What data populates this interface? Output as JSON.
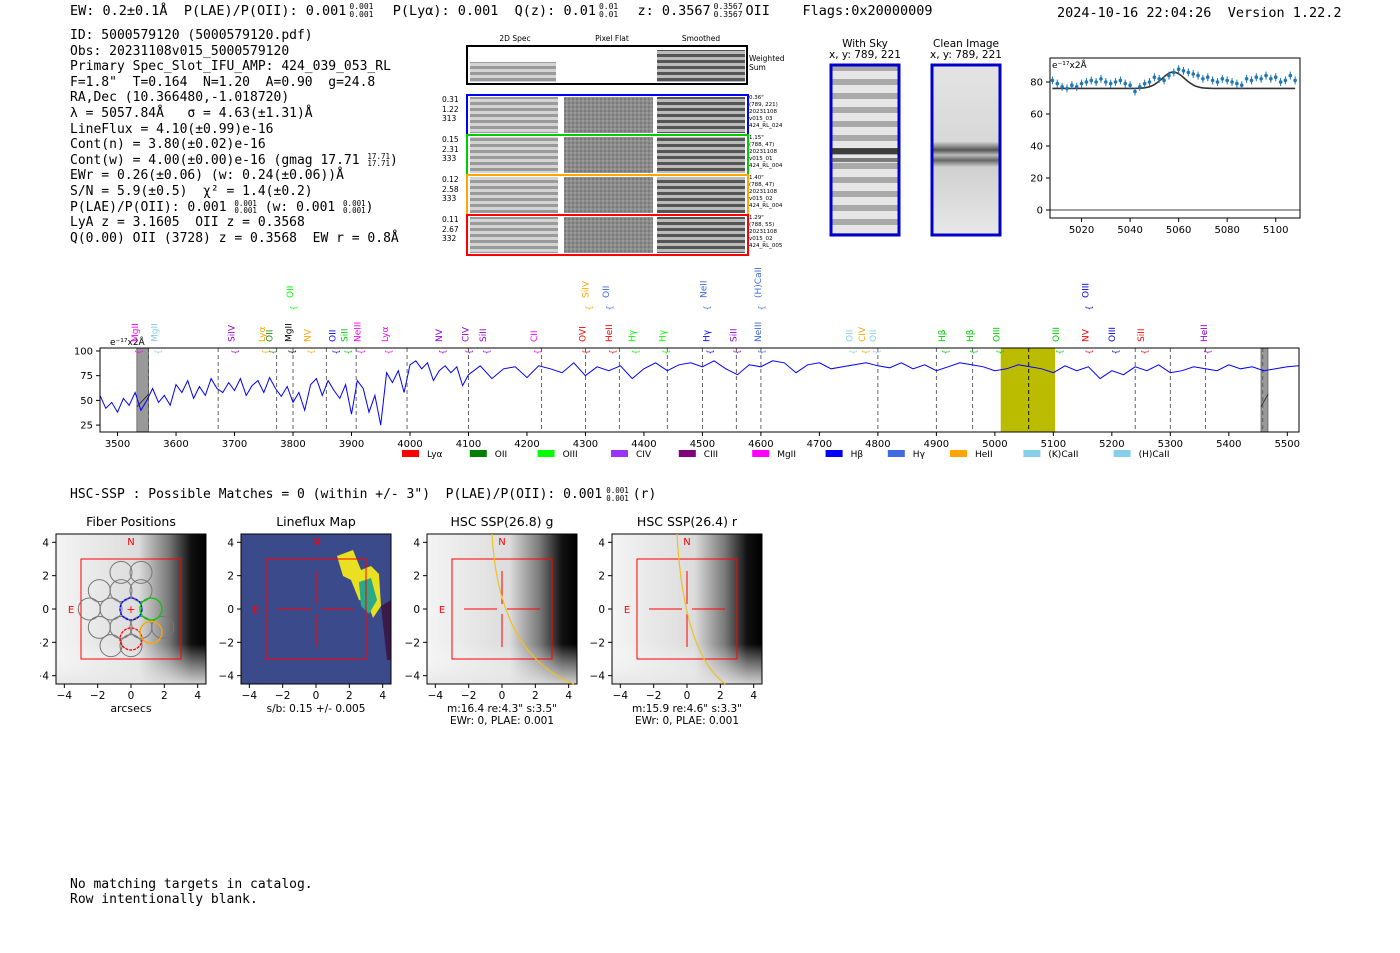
{
  "header": {
    "ew": "EW: 0.2±0.1Å",
    "plae": "P(LAE)/P(OII): 0.001",
    "plae_sup": "0.001",
    "plae_sub": "0.001",
    "plya": "P(Lyα): 0.001",
    "qz": "Q(z): 0.01",
    "qz_sup": "0.01",
    "qz_sub": "0.01",
    "z": "z: 0.3567",
    "z_sup": "0.3567",
    "z_sub": "0.3567",
    "z_line": "OII",
    "flags": "Flags:0x20000009",
    "datetime": "2024-10-16 22:04:26",
    "version": "Version 1.22.2"
  },
  "info": {
    "lines": [
      "ID: 5000579120 (5000579120.pdf)",
      "Obs: 20231108v015_5000579120",
      "Primary Spec_Slot_IFU_AMP: 424_039_053_RL",
      "F=1.8\"  T=0.164  N=1.20  A=0.90  g=24.8",
      "RA,Dec (10.366480,-1.018720)",
      "λ = 5057.84Å   σ = 4.63(±1.31)Å",
      "LineFlux = 4.10(±0.99)e-16",
      "Cont(n) = 3.80(±0.02)e-16",
      "Cont(w) = 4.00(±0.00)e-16 (gmag 17.71 ",
      "EWr = 0.26(±0.06) (w: 0.24(±0.06))Å",
      "S/N = 5.9(±0.5)  χ² = 1.4(±0.2)",
      "P(LAE)/P(OII): 0.001 ",
      "LyA z = 3.1605  OII z = 0.3568",
      "Q(0.00) OII (3728) z = 0.3568  EW r = 0.8Å"
    ],
    "gmag_sup": "17.71",
    "gmag_sub": "17.71",
    "gmag_close": ")",
    "plae_sup": "0.001",
    "plae_sub": "0.001",
    "plae_w": " (w: 0.001 ",
    "plae_w_sup": "0.001",
    "plae_w_sub": "0.001",
    "plae_w_close": ")"
  },
  "cutouts": {
    "col_titles": [
      "2D Spec",
      "Pixel Flat",
      "Smoothed"
    ],
    "weighted_label": "Weighted Sum",
    "rows": [
      {
        "color": "#0000ff",
        "left": [
          "0.31",
          "1.22",
          "313"
        ],
        "right": [
          "0.36\"",
          "(789, 221)",
          "20231108",
          "v015_03",
          "424_RL_024"
        ]
      },
      {
        "color": "#00cc00",
        "left": [
          "0.15",
          "2.31",
          "333"
        ],
        "right": [
          "1.15\"",
          "(788, 47)",
          "20231108",
          "v015_01",
          "424_RL_004"
        ]
      },
      {
        "color": "#ffa500",
        "left": [
          "0.12",
          "2.58",
          "333"
        ],
        "right": [
          "1.40\"",
          "(788, 47)",
          "20231108",
          "v015_02",
          "424_RL_004"
        ]
      },
      {
        "color": "#ff0000",
        "left": [
          "0.11",
          "2.67",
          "332"
        ],
        "right": [
          "1.29\"",
          "(788, 55)",
          "20231108",
          "v015_02",
          "424_RL_005"
        ]
      }
    ]
  },
  "sky": {
    "with_sky_title": "With Sky",
    "with_sky_coords": "x, y: 789, 221",
    "clean_title": "Clean Image",
    "clean_coords": "x, y: 789, 221"
  },
  "chart_data": [
    {
      "type": "line",
      "name": "zoom_fit",
      "title": "",
      "ylabel_tag": "e⁻¹⁷x2Å",
      "xlim": [
        5007,
        5110
      ],
      "ylim": [
        -5,
        95
      ],
      "xticks": [
        5020,
        5040,
        5060,
        5080,
        5100
      ],
      "yticks": [
        0,
        20,
        40,
        60,
        80
      ],
      "data_color": "#1f77b4",
      "fit_color": "#333333",
      "fit": {
        "continuum": 76,
        "amplitude": 10.2,
        "center": 5057.84,
        "sigma": 4.63
      },
      "x": [
        5008,
        5010,
        5012,
        5014,
        5016,
        5018,
        5020,
        5022,
        5024,
        5026,
        5028,
        5030,
        5032,
        5034,
        5036,
        5038,
        5040,
        5042,
        5044,
        5046,
        5048,
        5050,
        5052,
        5054,
        5056,
        5058,
        5060,
        5062,
        5064,
        5066,
        5068,
        5070,
        5072,
        5074,
        5076,
        5078,
        5080,
        5082,
        5084,
        5086,
        5088,
        5090,
        5092,
        5094,
        5096,
        5098,
        5100,
        5102,
        5104,
        5106,
        5108
      ],
      "y": [
        81,
        79,
        77,
        76,
        78,
        77,
        79,
        80,
        81,
        80,
        82,
        80,
        79,
        80,
        81,
        79,
        78,
        74,
        77,
        79,
        80,
        83,
        82,
        81,
        84,
        86,
        88,
        87,
        86,
        85,
        84,
        82,
        83,
        81,
        80,
        82,
        81,
        80,
        79,
        78,
        82,
        81,
        83,
        82,
        84,
        82,
        83,
        80,
        81,
        84,
        81
      ],
      "yerr": 2.5
    },
    {
      "type": "line",
      "name": "full_spectrum",
      "ylabel_tag": "e⁻¹⁷x2Å",
      "color": "#0000ff",
      "xlim": [
        3470,
        5520
      ],
      "ylim": [
        18,
        103
      ],
      "xticks": [
        3500,
        3600,
        3700,
        3800,
        3900,
        4000,
        4100,
        4200,
        4300,
        4400,
        4500,
        4600,
        4700,
        4800,
        4900,
        5000,
        5100,
        5200,
        5300,
        5400,
        5500
      ],
      "yticks": [
        25,
        50,
        75,
        100
      ],
      "x": [
        3470,
        3480,
        3490,
        3500,
        3510,
        3520,
        3530,
        3540,
        3550,
        3560,
        3570,
        3580,
        3590,
        3600,
        3610,
        3620,
        3630,
        3640,
        3650,
        3660,
        3670,
        3680,
        3690,
        3700,
        3710,
        3720,
        3730,
        3740,
        3750,
        3760,
        3770,
        3780,
        3790,
        3800,
        3810,
        3820,
        3830,
        3840,
        3850,
        3860,
        3870,
        3880,
        3890,
        3900,
        3910,
        3920,
        3930,
        3940,
        3950,
        3960,
        3970,
        3980,
        3990,
        4000,
        4010,
        4020,
        4030,
        4040,
        4050,
        4060,
        4070,
        4080,
        4090,
        4100,
        4120,
        4140,
        4160,
        4180,
        4200,
        4220,
        4240,
        4260,
        4280,
        4300,
        4320,
        4340,
        4360,
        4380,
        4400,
        4420,
        4440,
        4460,
        4480,
        4500,
        4520,
        4540,
        4560,
        4580,
        4600,
        4620,
        4640,
        4660,
        4680,
        4700,
        4720,
        4740,
        4760,
        4780,
        4800,
        4820,
        4840,
        4860,
        4880,
        4900,
        4920,
        4940,
        4960,
        4980,
        5000,
        5020,
        5040,
        5060,
        5080,
        5100,
        5120,
        5140,
        5160,
        5180,
        5200,
        5220,
        5240,
        5260,
        5280,
        5300,
        5320,
        5340,
        5360,
        5380,
        5400,
        5420,
        5440,
        5460,
        5480,
        5500,
        5520
      ],
      "y": [
        55,
        42,
        48,
        38,
        52,
        45,
        58,
        40,
        50,
        62,
        48,
        55,
        45,
        66,
        58,
        70,
        52,
        64,
        55,
        72,
        62,
        58,
        68,
        60,
        72,
        55,
        65,
        70,
        58,
        73,
        62,
        54,
        64,
        48,
        58,
        40,
        66,
        72,
        55,
        70,
        60,
        52,
        66,
        36,
        70,
        62,
        38,
        55,
        25,
        78,
        68,
        80,
        58,
        86,
        90,
        82,
        88,
        70,
        80,
        85,
        78,
        84,
        65,
        76,
        85,
        72,
        82,
        84,
        73,
        85,
        82,
        78,
        88,
        75,
        84,
        80,
        85,
        72,
        82,
        88,
        80,
        86,
        88,
        84,
        90,
        82,
        76,
        86,
        84,
        90,
        88,
        78,
        86,
        88,
        82,
        84,
        86,
        88,
        85,
        83,
        88,
        82,
        86,
        80,
        84,
        88,
        86,
        84,
        80,
        82,
        86,
        84,
        82,
        78,
        85,
        80,
        84,
        72,
        80,
        76,
        84,
        80,
        86,
        78,
        80,
        84,
        82,
        80,
        86,
        82,
        84,
        80,
        82,
        84,
        85
      ],
      "highlight_band": [
        5010,
        5103
      ],
      "highlight_color": "#bbbb00",
      "center_line": 5057.84,
      "masked_bands": [
        [
          3533,
          3553
        ],
        [
          5455,
          5467
        ]
      ],
      "dashed_lines": [
        3553,
        3672,
        3772,
        3800,
        3857,
        3908,
        3995,
        4100,
        4225,
        4300,
        4358,
        4440,
        4500,
        4558,
        4600,
        4800,
        4900,
        4962,
        5458,
        5240,
        5300,
        5360
      ],
      "line_labels": [
        {
          "name": "MgII",
          "x": 3535,
          "color": "#ff00ff",
          "row": 1
        },
        {
          "name": "MgII",
          "x": 3568,
          "color": "#87ceeb",
          "row": 1
        },
        {
          "name": "SiIV",
          "x": 3700,
          "color": "#9400d3",
          "row": 1
        },
        {
          "name": "Lyα",
          "x": 3752,
          "color": "#ffa500",
          "row": 1
        },
        {
          "name": "OII",
          "x": 3765,
          "color": "#228b22",
          "row": 1
        },
        {
          "name": "MgII",
          "x": 3797,
          "color": "#000000",
          "row": 1
        },
        {
          "name": "OII",
          "x": 3800,
          "color": "#00ff00",
          "row": 0
        },
        {
          "name": "NV",
          "x": 3830,
          "color": "#ffa500",
          "row": 1
        },
        {
          "name": "OII",
          "x": 3873,
          "color": "#0000ff",
          "row": 1
        },
        {
          "name": "SiII",
          "x": 3893,
          "color": "#00cc00",
          "row": 1
        },
        {
          "name": "NeIII",
          "x": 3915,
          "color": "#ff00ff",
          "row": 1
        },
        {
          "name": "Lyα",
          "x": 3962,
          "color": "#ff00ff",
          "row": 1
        },
        {
          "name": "NV",
          "x": 4055,
          "color": "#9400d3",
          "row": 1
        },
        {
          "name": "CIV",
          "x": 4100,
          "color": "#9400d3",
          "row": 1
        },
        {
          "name": "SiII",
          "x": 4130,
          "color": "#9400d3",
          "row": 1
        },
        {
          "name": "CII",
          "x": 4217,
          "color": "#ff00ff",
          "row": 1
        },
        {
          "name": "OVI",
          "x": 4300,
          "color": "#ff0000",
          "row": 1
        },
        {
          "name": "SiIV",
          "x": 4305,
          "color": "#ffa500",
          "row": 0
        },
        {
          "name": "OII",
          "x": 4340,
          "color": "#4169e1",
          "row": 0
        },
        {
          "name": "HeII",
          "x": 4345,
          "color": "#ff0000",
          "row": 1
        },
        {
          "name": "Hγ",
          "x": 4385,
          "color": "#00ff00",
          "row": 1
        },
        {
          "name": "Hγ",
          "x": 4437,
          "color": "#00ff00",
          "row": 1
        },
        {
          "name": "NeII",
          "x": 4507,
          "color": "#4169e1",
          "row": 0
        },
        {
          "name": "Hγ",
          "x": 4512,
          "color": "#0000ff",
          "row": 1
        },
        {
          "name": "SiII",
          "x": 4558,
          "color": "#9400d3",
          "row": 1
        },
        {
          "name": "NeIII",
          "x": 4600,
          "color": "#4169e1",
          "row": 1
        },
        {
          "name": "(H)CaII",
          "x": 4600,
          "color": "#4169e1",
          "row": 0
        },
        {
          "name": "OII",
          "x": 4757,
          "color": "#87ceeb",
          "row": 1
        },
        {
          "name": "CIV",
          "x": 4778,
          "color": "#ffa500",
          "row": 1
        },
        {
          "name": "OII",
          "x": 4797,
          "color": "#87ceeb",
          "row": 1
        },
        {
          "name": "Hβ",
          "x": 4915,
          "color": "#00cc00",
          "row": 1
        },
        {
          "name": "Hβ",
          "x": 4963,
          "color": "#00cc00",
          "row": 1
        },
        {
          "name": "OIII",
          "x": 5008,
          "color": "#00cc00",
          "row": 1
        },
        {
          "name": "OIII",
          "x": 5110,
          "color": "#00cc00",
          "row": 1
        },
        {
          "name": "OIII",
          "x": 5160,
          "color": "#0000cd",
          "row": 0
        },
        {
          "name": "NV",
          "x": 5160,
          "color": "#ff0000",
          "row": 1
        },
        {
          "name": "OIII",
          "x": 5205,
          "color": "#0000cd",
          "row": 1
        },
        {
          "name": "SiII",
          "x": 5255,
          "color": "#ff0000",
          "row": 1
        },
        {
          "name": "HeII",
          "x": 5363,
          "color": "#9400d3",
          "row": 1
        }
      ],
      "legend": [
        {
          "label": "Lyα",
          "color": "#ff0000"
        },
        {
          "label": "OII",
          "color": "#008000"
        },
        {
          "label": "OIII",
          "color": "#00ff00"
        },
        {
          "label": "CIV",
          "color": "#9933ff"
        },
        {
          "label": "CIII",
          "color": "#800080"
        },
        {
          "label": "MgII",
          "color": "#ff00ff"
        },
        {
          "label": "Hβ",
          "color": "#0000ff"
        },
        {
          "label": "Hγ",
          "color": "#4169e1"
        },
        {
          "label": "HeII",
          "color": "#ffa500"
        },
        {
          "label": "(K)CaII",
          "color": "#87ceeb"
        },
        {
          "label": "(H)CaII",
          "color": "#87ceeb"
        }
      ]
    }
  ],
  "hsc": {
    "line": "HSC-SSP : Possible Matches = 0 (within +/- 3\")  P(LAE)/P(OII): 0.001",
    "sup": "0.001",
    "sub": "0.001",
    "band": "(r)",
    "panels": [
      {
        "title": "Fiber Positions",
        "xlabel": "arcsecs",
        "caption": []
      },
      {
        "title": "Lineflux Map",
        "xlabel": "",
        "caption": [
          "s/b: 0.15 +/- 0.005"
        ]
      },
      {
        "title": "HSC SSP(26.8) g",
        "xlabel": "",
        "caption": [
          "m:16.4  re:4.3\"  s:3.5\"",
          "EWr: 0, PLAE: 0.001"
        ]
      },
      {
        "title": "HSC SSP(26.4) r",
        "xlabel": "",
        "caption": [
          "m:15.9  re:4.6\"  s:3.3\"",
          "EWr: 0, PLAE: 0.001"
        ]
      }
    ],
    "ticks": [
      "−4",
      "−2",
      "0",
      "2",
      "4"
    ],
    "north": "N",
    "east": "E"
  },
  "footer": {
    "line1": "No matching targets in catalog.",
    "line2": "Row intentionally blank."
  }
}
